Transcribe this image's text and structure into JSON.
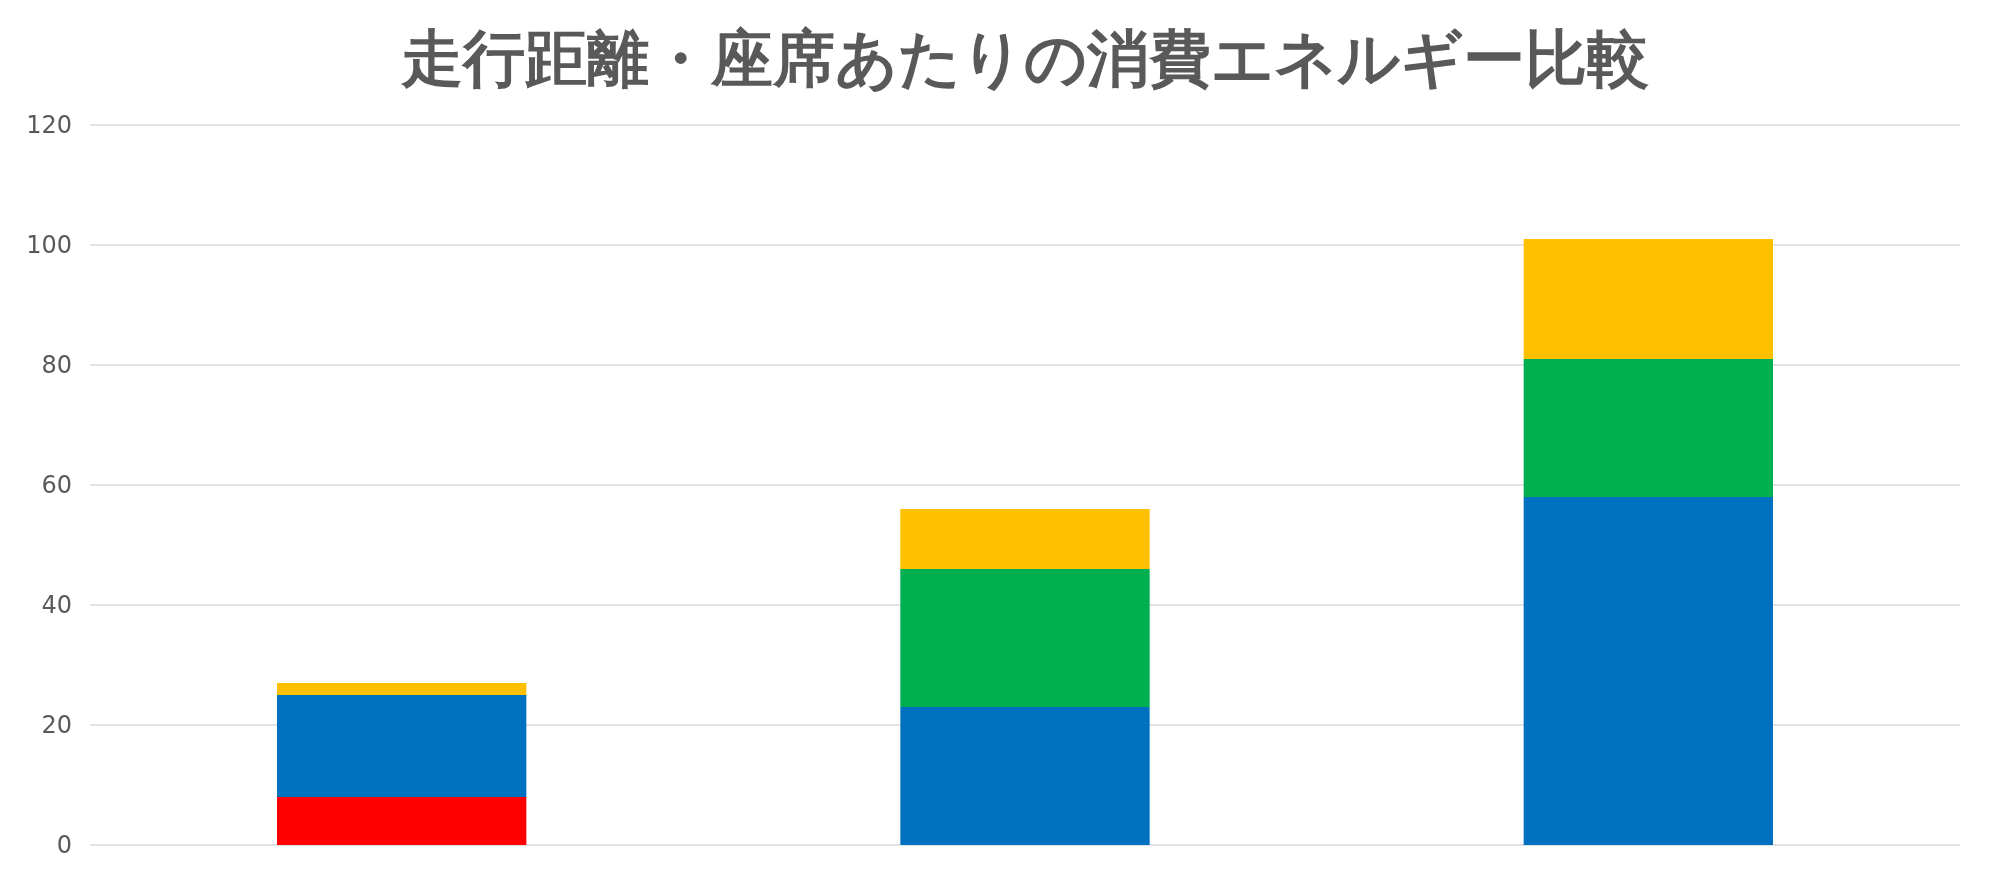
{
  "chart_data": {
    "type": "bar",
    "title": "走行距離・座席あたりの消費エネルギー比較",
    "stacked": true,
    "categories": [
      null,
      null,
      null
    ],
    "series": [
      {
        "color": "#ff0000",
        "values": [
          8,
          null,
          null
        ]
      },
      {
        "color": "#0070c0",
        "values": [
          17,
          23,
          58
        ]
      },
      {
        "color": "#00b050",
        "values": [
          null,
          23,
          23
        ]
      },
      {
        "color": "#ffc000",
        "values": [
          2,
          10,
          20
        ]
      }
    ],
    "ylim": [
      0,
      120
    ],
    "yticks": [
      0,
      20,
      40,
      60,
      80,
      100,
      120
    ],
    "grid": "y"
  }
}
